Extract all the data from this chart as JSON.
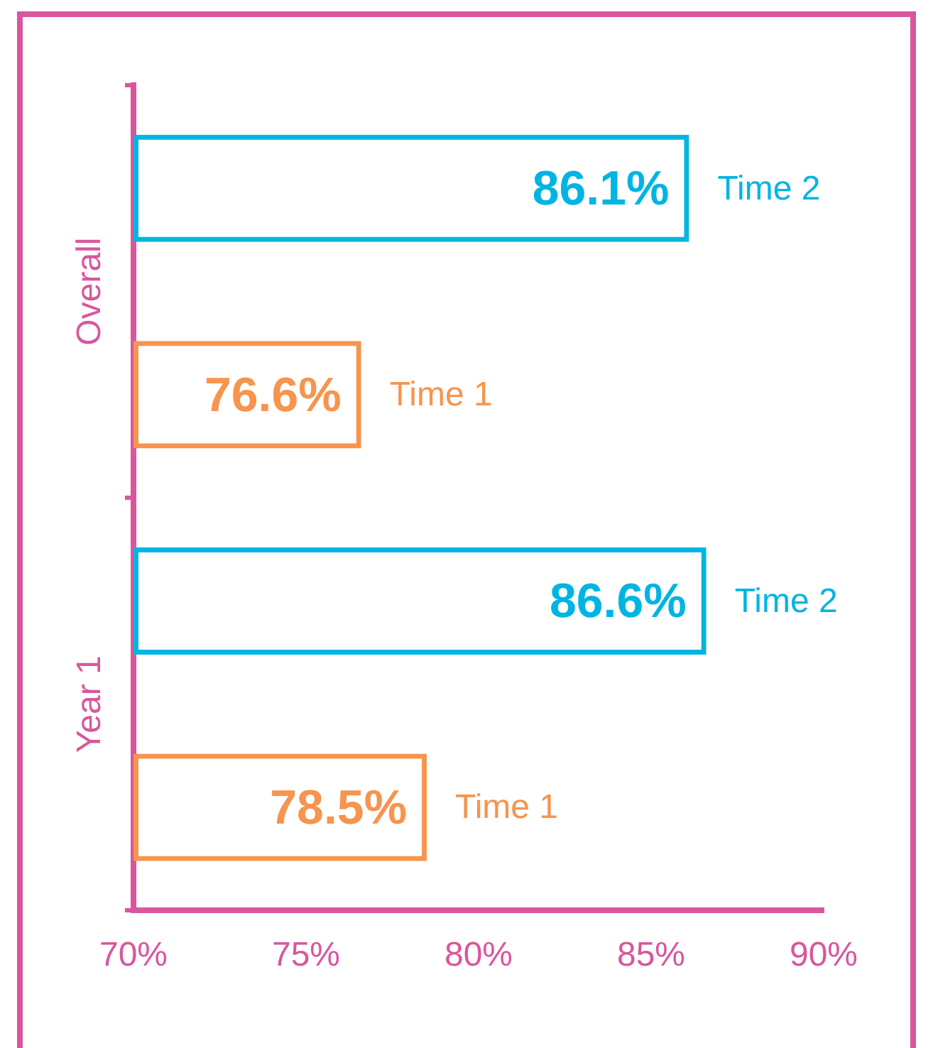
{
  "chart_data": {
    "type": "bar",
    "orientation": "horizontal",
    "categories": [
      "Overall",
      "Year 1"
    ],
    "series": [
      {
        "name": "Time 2",
        "color": "#00b5e2",
        "values": [
          86.1,
          86.6
        ],
        "value_labels": [
          "86.1%",
          "86.6%"
        ]
      },
      {
        "name": "Time 1",
        "color": "#f7944d",
        "values": [
          76.6,
          78.5
        ],
        "value_labels": [
          "76.6%",
          "78.5%"
        ]
      }
    ],
    "xlim": [
      70,
      90
    ],
    "xticks": [
      {
        "value": 70,
        "label": "70%"
      },
      {
        "value": 75,
        "label": "75%"
      },
      {
        "value": 80,
        "label": "80%"
      },
      {
        "value": 85,
        "label": "85%"
      },
      {
        "value": 90,
        "label": "90%"
      }
    ],
    "grid": false,
    "legend": false
  }
}
